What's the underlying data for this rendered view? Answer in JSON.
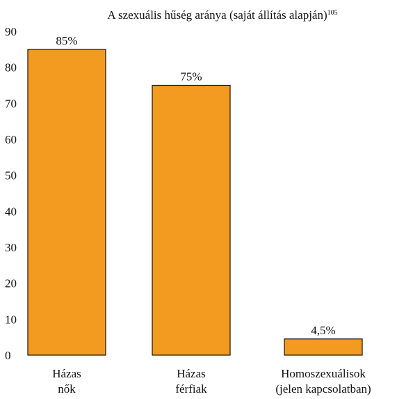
{
  "chart_data": {
    "type": "bar",
    "title": "A szexuális hűség aránya (saját állítás alapján)",
    "title_footnote": "105",
    "xlabel": "",
    "ylabel": "",
    "ylim": [
      0,
      90
    ],
    "yticks": [
      0,
      10,
      20,
      30,
      40,
      50,
      60,
      70,
      80,
      90
    ],
    "grid": false,
    "categories": [
      [
        "Házas",
        "nők"
      ],
      [
        "Házas",
        "férfiak"
      ],
      [
        "Homoszexuálisok",
        "(jelen kapcsolatban)"
      ]
    ],
    "values": [
      85,
      75,
      4.5
    ],
    "data_labels": [
      "85%",
      "75%",
      "4,5%"
    ],
    "colors": {
      "bar_fill": "#F39A21",
      "bar_stroke": "#111111",
      "text": "#111111"
    }
  }
}
